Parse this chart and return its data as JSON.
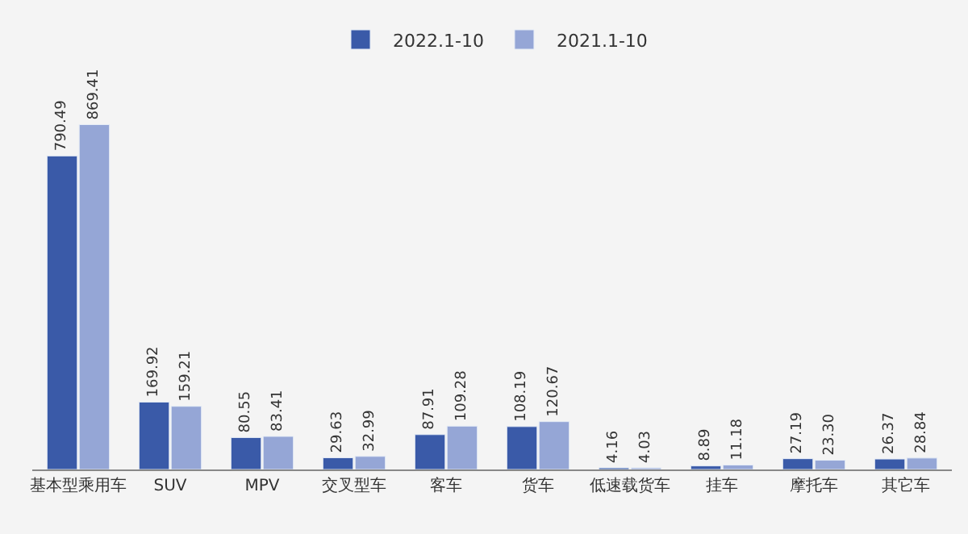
{
  "chart_data": {
    "type": "bar",
    "categories": [
      "基本型乘用车",
      "SUV",
      "MPV",
      "交叉型车",
      "客车",
      "货车",
      "低速载货车",
      "挂车",
      "摩托车",
      "其它车"
    ],
    "series": [
      {
        "name": "2022.1-10",
        "color": "#3a5aa8",
        "values": [
          790.49,
          169.92,
          80.55,
          29.63,
          87.91,
          108.19,
          4.16,
          8.89,
          27.19,
          26.37
        ],
        "value_labels": [
          "790.49",
          "169.92",
          "80.55",
          "29.63",
          "87.91",
          "108.19",
          "4.16",
          "8.89",
          "27.19",
          "26.37"
        ]
      },
      {
        "name": "2021.1-10",
        "color": "#95a6d6",
        "values": [
          869.41,
          159.21,
          83.41,
          32.99,
          109.28,
          120.67,
          4.03,
          11.18,
          23.3,
          28.84
        ],
        "value_labels": [
          "869.41",
          "159.21",
          "83.41",
          "32.99",
          "109.28",
          "120.67",
          "4.03",
          "11.18",
          "23.30",
          "28.84"
        ]
      }
    ],
    "legend": "top"
  }
}
